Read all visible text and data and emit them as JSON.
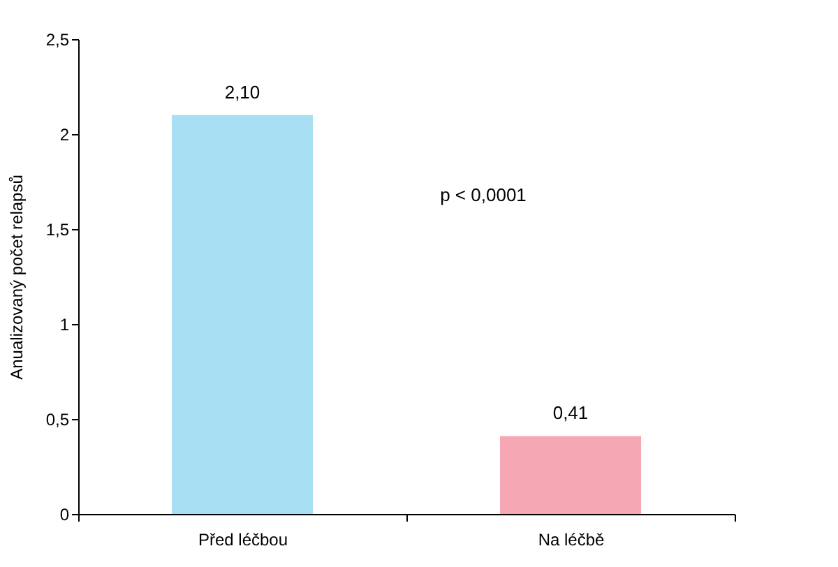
{
  "chart_data": {
    "type": "bar",
    "ylabel": "Anualizovaný počet relapsů",
    "categories": [
      "Před léčbou",
      "Na léčbě"
    ],
    "values": [
      2.1,
      0.41
    ],
    "colors": [
      "#a8dff2",
      "#f5a7b3"
    ],
    "value_labels": [
      "2,10",
      "0,41"
    ],
    "ylim": [
      0,
      2.5
    ],
    "yticks": [
      0,
      {
        "value": 0.5,
        "label": "0,5"
      },
      1,
      {
        "value": 1.5,
        "label": "1,5"
      },
      2,
      {
        "value": 2.5,
        "label": "2,5"
      }
    ],
    "annotations": [
      "p < 0,0001"
    ],
    "grid": false
  }
}
